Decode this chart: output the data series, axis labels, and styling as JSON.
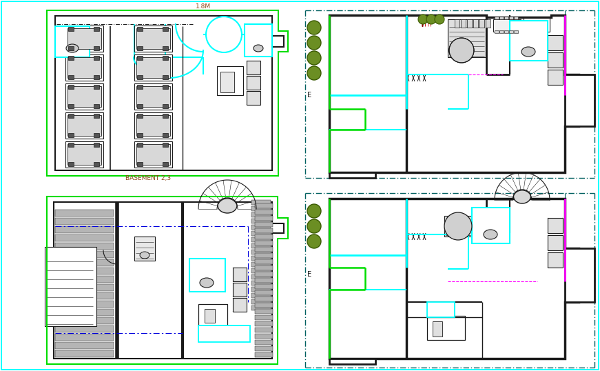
{
  "bg_color": "#ffffff",
  "border_color": "#00ffff",
  "title_text": "BASEMENT 2,3",
  "title_color": "#8B4513",
  "title_fontsize": 6.5,
  "annotation_1_8m": "1.8M",
  "annotation_color": "#8B4513",
  "green": "#00dd00",
  "cyan": "#00ffff",
  "dark": "#1a1a1a",
  "magenta": "#ff00ff",
  "blue": "#0000dd",
  "teal_dashdot": "#006060",
  "white": "#ffffff",
  "tree_fill": "#6b8e23",
  "tree_edge": "#3a5a00",
  "hatch_color": "#404040",
  "car_fill": "#d8d8d8",
  "elev_fill": "#e0e0e0"
}
